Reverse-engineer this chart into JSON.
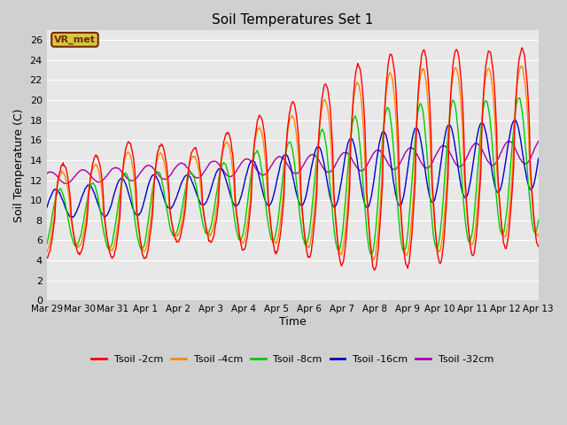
{
  "title": "Soil Temperatures Set 1",
  "xlabel": "Time",
  "ylabel": "Soil Temperature (C)",
  "ylim": [
    0,
    27
  ],
  "yticks": [
    0,
    2,
    4,
    6,
    8,
    10,
    12,
    14,
    16,
    18,
    20,
    22,
    24,
    26
  ],
  "fig_bg_color": "#d0d0d0",
  "plot_bg_color": "#e8e8e8",
  "grid_color": "#ffffff",
  "annotation_text": "VR_met",
  "annotation_bg": "#d4c840",
  "annotation_border": "#7a2800",
  "annotation_text_color": "#7a2800",
  "series_colors": {
    "2cm": "#ff0000",
    "4cm": "#ff8800",
    "8cm": "#00cc00",
    "16cm": "#0000cc",
    "32cm": "#aa00aa"
  },
  "series_labels": [
    "Tsoil -2cm",
    "Tsoil -4cm",
    "Tsoil -8cm",
    "Tsoil -16cm",
    "Tsoil -32cm"
  ],
  "x_tick_labels": [
    "Mar 29",
    "Mar 30",
    "Mar 31",
    "Apr 1",
    "Apr 2",
    "Apr 3",
    "Apr 4",
    "Apr 5",
    "Apr 6",
    "Apr 7",
    "Apr 8",
    "Apr 9",
    "Apr 10",
    "Apr 11",
    "Apr 12",
    "Apr 13"
  ],
  "figsize": [
    6.4,
    4.8
  ],
  "dpi": 100
}
